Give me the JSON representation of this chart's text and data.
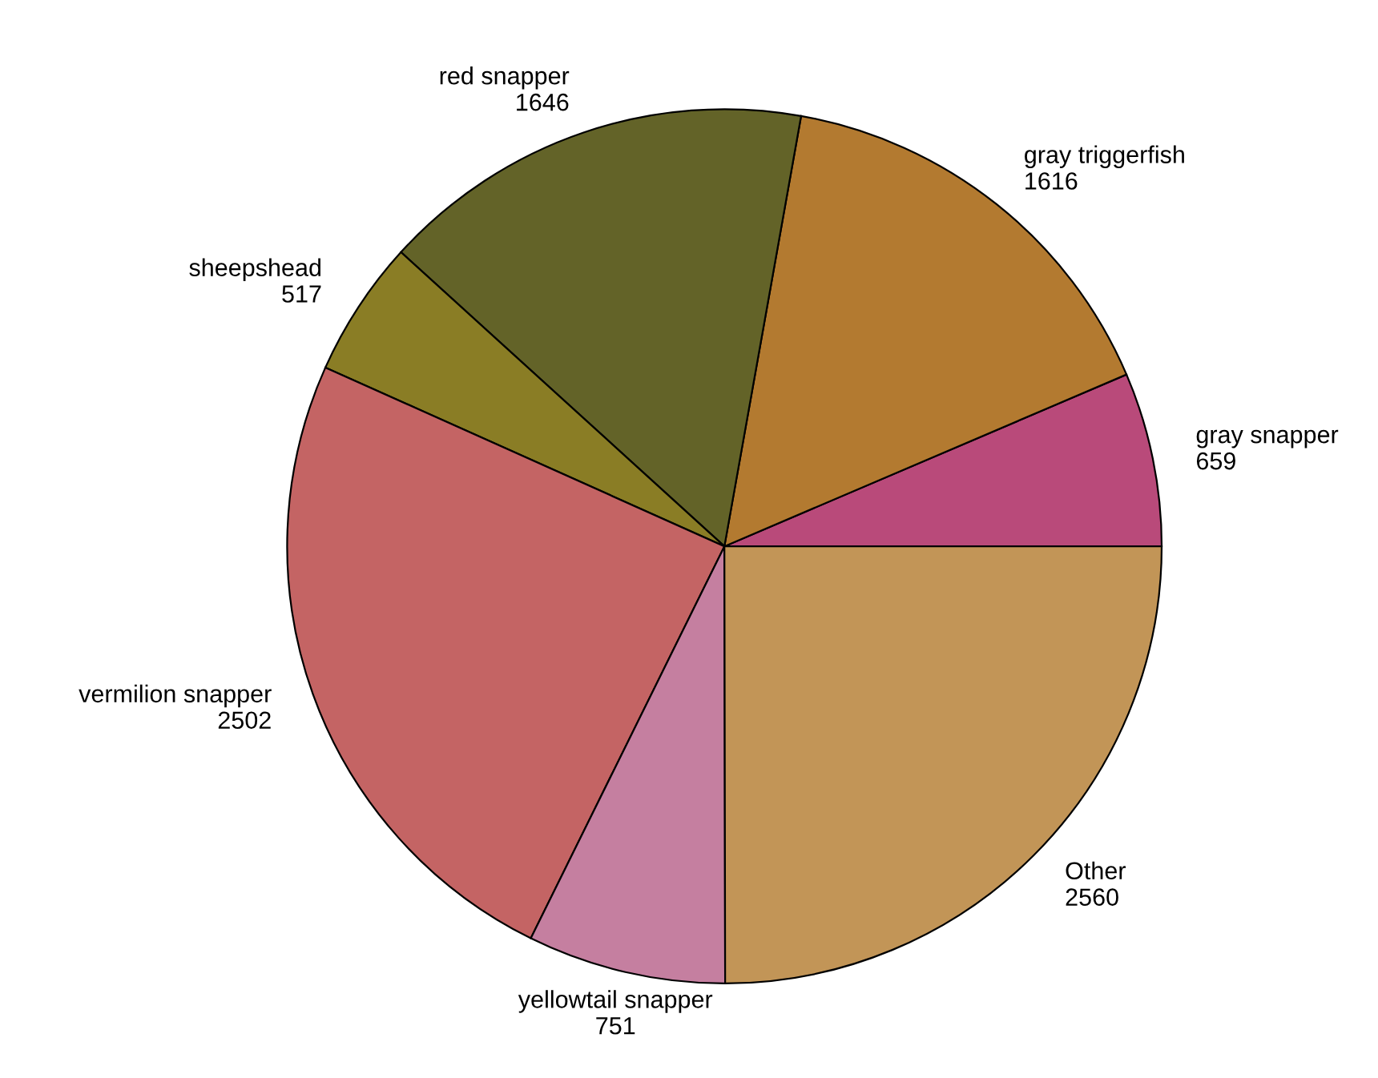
{
  "chart_data": {
    "type": "pie",
    "categories": [
      "gray snapper",
      "gray triggerfish",
      "red snapper",
      "sheepshead",
      "vermilion snapper",
      "yellowtail snapper",
      "Other"
    ],
    "values": [
      659,
      1616,
      1646,
      517,
      2502,
      751,
      2560
    ],
    "colors": [
      "#b94a7a",
      "#b37a30",
      "#636328",
      "#8a7d25",
      "#c46464",
      "#c57fa0",
      "#c29557"
    ],
    "data_labels": true
  }
}
